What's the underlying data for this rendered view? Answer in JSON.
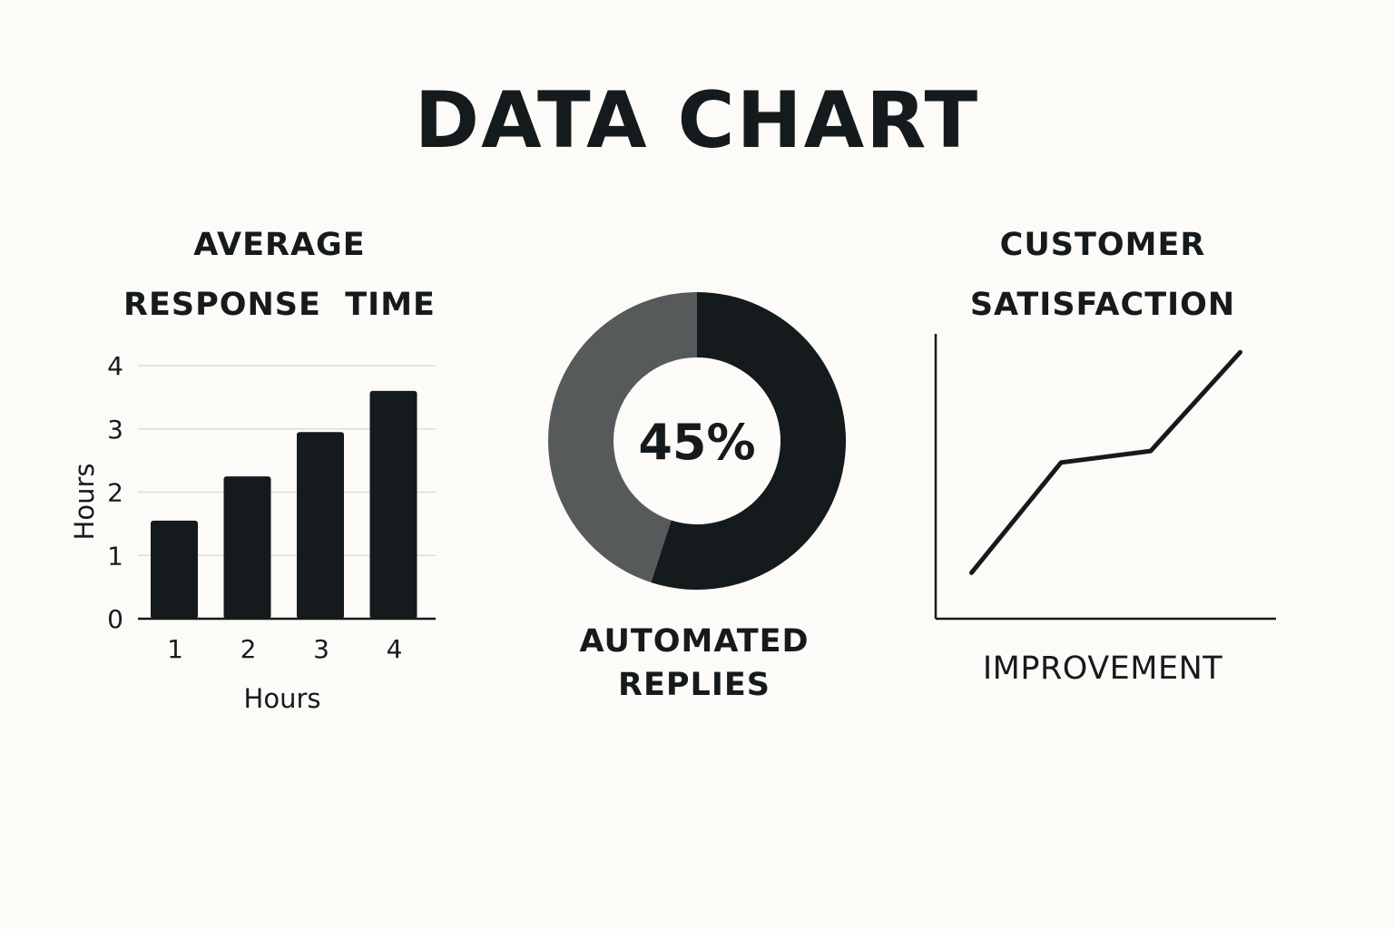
{
  "title": "DATA CHART",
  "colors": {
    "background": "#fcfbf7",
    "dark": "#151b1d",
    "grey": "#565a5b",
    "grid": "#dcdcd8"
  },
  "chart_data": [
    {
      "type": "bar",
      "title_lines": [
        "AVERAGE",
        "RESPONSE  TIME"
      ],
      "xlabel": "Hours",
      "ylabel": "Hours",
      "categories": [
        "1",
        "2",
        "3",
        "4"
      ],
      "values": [
        1.55,
        2.25,
        2.95,
        3.6
      ],
      "ylim": [
        0,
        4
      ],
      "yticks": [
        "0",
        "1",
        "2",
        "3",
        "4"
      ],
      "grid": true
    },
    {
      "type": "pie",
      "donut": true,
      "center_label": "45%",
      "caption_lines": [
        "AUTOMATED",
        "REPLIES"
      ],
      "slices": [
        {
          "value": 55,
          "color": "#151b1d"
        },
        {
          "value": 45,
          "color": "#565a5b"
        }
      ]
    },
    {
      "type": "line",
      "title_lines": [
        "CUSTOMER",
        "SATISFACTION"
      ],
      "xlabel": "IMPROVEMENT",
      "x": [
        1,
        2,
        3,
        4
      ],
      "y": [
        1.0,
        3.4,
        3.65,
        5.8
      ],
      "xlim": [
        0.6,
        4.4
      ],
      "ylim": [
        0,
        6.2
      ]
    }
  ]
}
